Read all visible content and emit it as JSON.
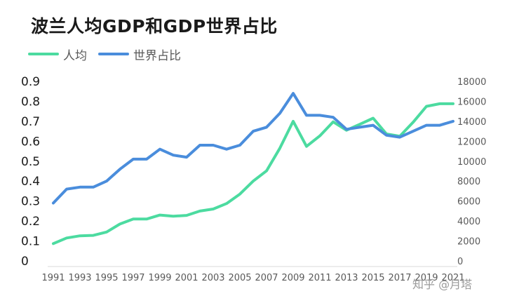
{
  "chart_data": {
    "type": "line",
    "title": "波兰人均GDP和GDP世界占比",
    "x": [
      "1991",
      "1992",
      "1993",
      "1994",
      "1995",
      "1996",
      "1997",
      "1998",
      "1999",
      "2000",
      "2001",
      "2002",
      "2003",
      "2004",
      "2005",
      "2006",
      "2007",
      "2008",
      "2009",
      "2010",
      "2011",
      "2012",
      "2013",
      "2014",
      "2015",
      "2016",
      "2017",
      "2018",
      "2019",
      "2020",
      "2021"
    ],
    "x_tick_labels": [
      "1991",
      "1993",
      "1995",
      "1997",
      "1999",
      "2001",
      "2003",
      "2005",
      "2007",
      "2009",
      "2011",
      "2013",
      "2015",
      "2017",
      "2019",
      "2021"
    ],
    "left_axis": {
      "ylim": [
        0,
        0.9
      ],
      "ticks": [
        "0",
        "0.1",
        "0.2",
        "0.3",
        "0.4",
        "0.5",
        "0.6",
        "0.7",
        "0.8",
        "0.9"
      ]
    },
    "right_axis": {
      "ylim": [
        0,
        18000
      ],
      "ticks": [
        "0",
        "2000",
        "4000",
        "6000",
        "8000",
        "10000",
        "12000",
        "14000",
        "16000",
        "18000"
      ]
    },
    "series": [
      {
        "name": "人均",
        "axis": "right",
        "color": "#4cdba0",
        "values": [
          1740,
          2300,
          2520,
          2560,
          2900,
          3700,
          4200,
          4200,
          4600,
          4480,
          4560,
          5000,
          5200,
          5750,
          6700,
          8000,
          9030,
          11300,
          14000,
          11480,
          12540,
          13940,
          13100,
          13700,
          14310,
          12730,
          12500,
          13900,
          15500,
          15760,
          15760
        ]
      },
      {
        "name": "世界占比",
        "axis": "left",
        "color": "#4a8ddc",
        "values": [
          0.29,
          0.36,
          0.37,
          0.37,
          0.4,
          0.46,
          0.51,
          0.51,
          0.56,
          0.53,
          0.52,
          0.58,
          0.58,
          0.56,
          0.58,
          0.65,
          0.67,
          0.74,
          0.84,
          0.73,
          0.73,
          0.72,
          0.66,
          0.67,
          0.68,
          0.63,
          0.62,
          0.65,
          0.68,
          0.68,
          0.7
        ]
      }
    ],
    "legend_position": "top-left",
    "grid": false
  },
  "watermark": "知乎 @月塔"
}
